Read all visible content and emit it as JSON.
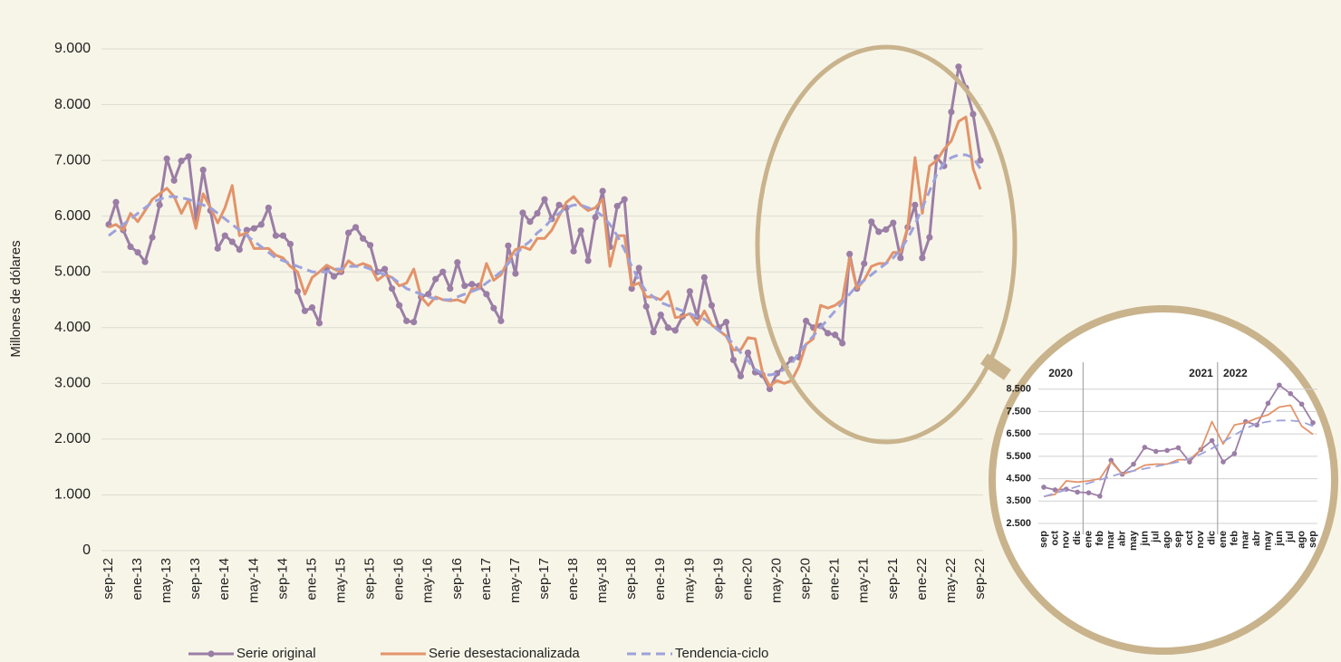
{
  "chart_data": [
    {
      "type": "line",
      "ylabel": "Millones de dólares",
      "grid": true,
      "legend": "bottom",
      "ylim": [
        0,
        9000
      ],
      "yticks": [
        0,
        {
          "value": 1000,
          "label": "1.000"
        },
        {
          "value": 2000,
          "label": "2.000"
        },
        {
          "value": 3000,
          "label": "3.000"
        },
        {
          "value": 4000,
          "label": "4.000"
        },
        {
          "value": 5000,
          "label": "5.000"
        },
        {
          "value": 6000,
          "label": "6.000"
        },
        {
          "value": 7000,
          "label": "7.000"
        },
        {
          "value": 8000,
          "label": "8.000"
        },
        {
          "value": 9000,
          "label": "9.000"
        }
      ],
      "categories": [
        "sep-12",
        null,
        null,
        null,
        "ene-13",
        null,
        null,
        null,
        "may-13",
        null,
        null,
        null,
        "sep-13",
        null,
        null,
        null,
        "ene-14",
        null,
        null,
        null,
        "may-14",
        null,
        null,
        null,
        "sep-14",
        null,
        null,
        null,
        "ene-15",
        null,
        null,
        null,
        "may-15",
        null,
        null,
        null,
        "sep-15",
        null,
        null,
        null,
        "ene-16",
        null,
        null,
        null,
        "may-16",
        null,
        null,
        null,
        "sep-16",
        null,
        null,
        null,
        "ene-17",
        null,
        null,
        null,
        "may-17",
        null,
        null,
        null,
        "sep-17",
        null,
        null,
        null,
        "ene-18",
        null,
        null,
        null,
        "may-18",
        null,
        null,
        null,
        "sep-18",
        null,
        null,
        null,
        "ene-19",
        null,
        null,
        null,
        "may-19",
        null,
        null,
        null,
        "sep-19",
        null,
        null,
        null,
        "ene-20",
        null,
        null,
        null,
        "may-20",
        null,
        null,
        null,
        "sep-20",
        null,
        null,
        null,
        "ene-21",
        null,
        null,
        null,
        "may-21",
        null,
        null,
        null,
        "sep-21",
        null,
        null,
        null,
        "ene-22",
        null,
        null,
        null,
        "may-22",
        null,
        null,
        null,
        "sep-22"
      ],
      "series": [
        {
          "name": "Serie original",
          "color": "#9b7ea6",
          "marker": "circle",
          "style": "solid",
          "values": [
            5850,
            6250,
            5750,
            5450,
            5350,
            5180,
            5620,
            6200,
            7030,
            6640,
            6990,
            7070,
            5950,
            6830,
            6100,
            5420,
            5650,
            5540,
            5400,
            5750,
            5780,
            5850,
            6150,
            5650,
            5650,
            5500,
            4650,
            4300,
            4360,
            4080,
            5050,
            4920,
            5000,
            5700,
            5800,
            5600,
            5480,
            5000,
            5050,
            4700,
            4400,
            4120,
            4100,
            4550,
            4600,
            4870,
            5000,
            4700,
            5170,
            4750,
            4780,
            4750,
            4600,
            4350,
            4120,
            5470,
            4970,
            6060,
            5900,
            6050,
            6300,
            5950,
            6200,
            6150,
            5370,
            5740,
            5200,
            5980,
            6450,
            5450,
            6180,
            6300,
            4700,
            5070,
            4380,
            3920,
            4230,
            4000,
            3950,
            4200,
            4650,
            4200,
            4900,
            4400,
            4000,
            4100,
            3420,
            3130,
            3550,
            3200,
            3150,
            2900,
            3180,
            3300,
            3430,
            3470,
            4120,
            4000,
            4030,
            3900,
            3870,
            3720,
            5320,
            4700,
            5150,
            5900,
            5720,
            5760,
            5880,
            5250,
            5800,
            6200,
            5250,
            5620,
            7050,
            6900,
            7870,
            8680,
            8300,
            7830,
            7000
          ]
        },
        {
          "name": "Serie desestacionalizada",
          "color": "#e3936a",
          "style": "solid",
          "values": [
            5800,
            5850,
            5750,
            6050,
            5900,
            6100,
            6300,
            6400,
            6500,
            6350,
            6050,
            6300,
            5780,
            6400,
            6150,
            5880,
            6150,
            6550,
            5650,
            5700,
            5420,
            5420,
            5420,
            5300,
            5250,
            5100,
            5000,
            4600,
            4900,
            5000,
            5120,
            5050,
            5000,
            5200,
            5100,
            5150,
            5100,
            4850,
            4950,
            4900,
            4750,
            4800,
            5050,
            4550,
            4400,
            4550,
            4500,
            4480,
            4500,
            4450,
            4700,
            4700,
            5150,
            4850,
            4950,
            5200,
            5400,
            5450,
            5400,
            5600,
            5600,
            5750,
            6000,
            6250,
            6350,
            6200,
            6100,
            6150,
            6300,
            5100,
            5650,
            5650,
            4750,
            4800,
            4550,
            4550,
            4500,
            4650,
            4180,
            4200,
            4250,
            4050,
            4300,
            4050,
            3950,
            3850,
            3600,
            3600,
            3820,
            3800,
            3200,
            2950,
            3050,
            3000,
            3050,
            3300,
            3700,
            3800,
            4400,
            4350,
            4400,
            4500,
            5250,
            4700,
            4850,
            5100,
            5150,
            5150,
            5350,
            5350,
            5800,
            7050,
            6050,
            6900,
            7000,
            7200,
            7350,
            7700,
            7780,
            6850,
            6480
          ]
        },
        {
          "name": "Tendencia-ciclo",
          "color": "#9da2db",
          "style": "dashed",
          "values": [
            5650,
            5750,
            5850,
            5950,
            6050,
            6150,
            6250,
            6300,
            6350,
            6350,
            6330,
            6300,
            6250,
            6200,
            6150,
            6050,
            5950,
            5850,
            5750,
            5650,
            5550,
            5450,
            5350,
            5250,
            5200,
            5150,
            5100,
            5050,
            5000,
            5000,
            5000,
            5050,
            5050,
            5100,
            5100,
            5100,
            5050,
            5000,
            4950,
            4900,
            4800,
            4700,
            4650,
            4600,
            4550,
            4520,
            4500,
            4500,
            4550,
            4600,
            4650,
            4700,
            4800,
            4900,
            5000,
            5150,
            5300,
            5450,
            5550,
            5700,
            5800,
            5950,
            6050,
            6150,
            6200,
            6200,
            6150,
            6100,
            6000,
            5850,
            5650,
            5400,
            5100,
            4850,
            4650,
            4550,
            4450,
            4400,
            4350,
            4300,
            4250,
            4200,
            4150,
            4050,
            3950,
            3850,
            3700,
            3550,
            3400,
            3250,
            3180,
            3150,
            3180,
            3250,
            3350,
            3550,
            3700,
            3850,
            4000,
            4150,
            4300,
            4450,
            4600,
            4750,
            4850,
            4950,
            5050,
            5150,
            5250,
            5400,
            5600,
            5850,
            6150,
            6450,
            6750,
            6950,
            7050,
            7100,
            7100,
            7050,
            6850
          ]
        }
      ]
    },
    {
      "type": "line",
      "grid": true,
      "ylim": [
        2500,
        9500
      ],
      "yticks": [
        {
          "value": 2500,
          "label": "2.500"
        },
        {
          "value": 3500,
          "label": "3.500"
        },
        {
          "value": 4500,
          "label": "4.500"
        },
        {
          "value": 5500,
          "label": "5.500"
        },
        {
          "value": 6500,
          "label": "6.500"
        },
        {
          "value": 7500,
          "label": "7.500"
        },
        {
          "value": 8500,
          "label": "8.500"
        }
      ],
      "year_labels": [
        "2020",
        "2021",
        "2022"
      ],
      "categories": [
        "sep",
        "oct",
        "nov",
        "dic",
        "ene",
        "feb",
        "mar",
        "abr",
        "may",
        "jun",
        "jul",
        "ago",
        "sep",
        "oct",
        "nov",
        "dic",
        "ene",
        "feb",
        "mar",
        "abr",
        "may",
        "jun",
        "jul",
        "ago",
        "sep"
      ],
      "series": [
        {
          "color": "#9b7ea6",
          "marker": "circle",
          "style": "solid",
          "values": [
            4120,
            4000,
            4030,
            3900,
            3870,
            3720,
            5320,
            4700,
            5150,
            5900,
            5720,
            5760,
            5880,
            5250,
            5800,
            6200,
            5250,
            5620,
            7050,
            6900,
            7870,
            8680,
            8300,
            7830,
            7000
          ]
        },
        {
          "color": "#e3936a",
          "style": "solid",
          "values": [
            3700,
            3800,
            4400,
            4350,
            4400,
            4500,
            5250,
            4700,
            4850,
            5100,
            5150,
            5150,
            5350,
            5350,
            5800,
            7050,
            6050,
            6900,
            7000,
            7200,
            7350,
            7700,
            7780,
            6850,
            6480
          ]
        },
        {
          "color": "#9da2db",
          "style": "dashed",
          "values": [
            3700,
            3850,
            4000,
            4150,
            4300,
            4450,
            4600,
            4750,
            4850,
            4950,
            5050,
            5150,
            5250,
            5400,
            5600,
            5850,
            6150,
            6450,
            6750,
            6950,
            7050,
            7100,
            7100,
            7050,
            6850
          ]
        }
      ]
    }
  ]
}
